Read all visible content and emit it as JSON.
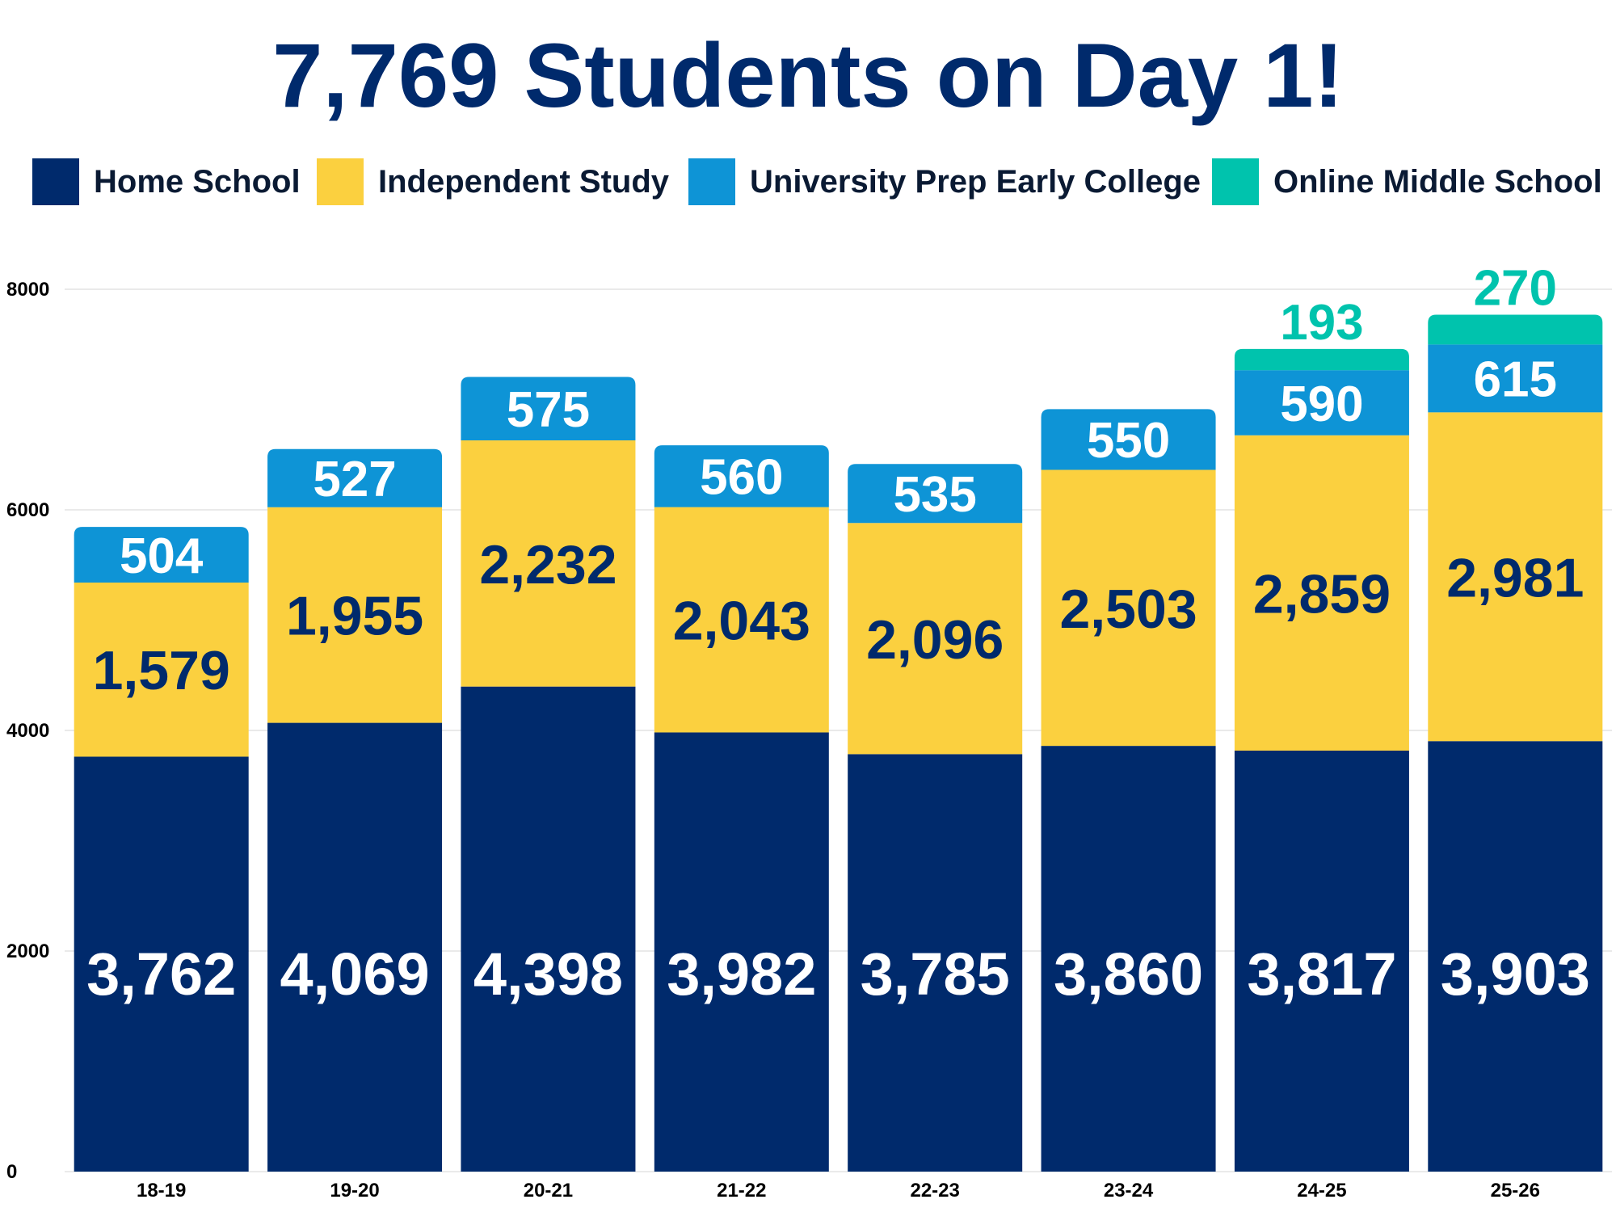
{
  "chart_data": {
    "type": "bar",
    "stacked": true,
    "title": "7,769 Students on Day 1!",
    "xlabel": "",
    "ylabel": "",
    "ylim": [
      0,
      8000
    ],
    "yticks": [
      0,
      2000,
      4000,
      6000,
      8000
    ],
    "grid": true,
    "legend_position": "top",
    "categories": [
      "18-19",
      "19-20",
      "20-21",
      "21-22",
      "22-23",
      "23-24",
      "24-25",
      "25-26"
    ],
    "series": [
      {
        "name": "Home School",
        "color": "#002a6c",
        "values": [
          3762,
          4069,
          4398,
          3982,
          3785,
          3860,
          3817,
          3903
        ],
        "labels": [
          "3,762",
          "4,069",
          "4,398",
          "3,982",
          "3,785",
          "3,860",
          "3,817",
          "3,903"
        ],
        "label_color": "#ffffff"
      },
      {
        "name": "Independent Study",
        "color": "#fbd03f",
        "values": [
          1579,
          1955,
          2232,
          2043,
          2096,
          2503,
          2859,
          2981
        ],
        "labels": [
          "1,579",
          "1,955",
          "2,232",
          "2,043",
          "2,096",
          "2,503",
          "2,859",
          "2,981"
        ],
        "label_color": "#002a6c"
      },
      {
        "name": "University Prep Early College",
        "color": "#0e94d6",
        "values": [
          504,
          527,
          575,
          560,
          535,
          550,
          590,
          615
        ],
        "labels": [
          "504",
          "527",
          "575",
          "560",
          "535",
          "550",
          "590",
          "615"
        ],
        "label_color": "#ffffff"
      },
      {
        "name": "Online Middle School",
        "color": "#00c3ad",
        "values": [
          null,
          null,
          null,
          null,
          null,
          null,
          193,
          270
        ],
        "labels": [
          null,
          null,
          null,
          null,
          null,
          null,
          "193",
          "270"
        ],
        "label_color": "#00c3ad"
      }
    ]
  }
}
